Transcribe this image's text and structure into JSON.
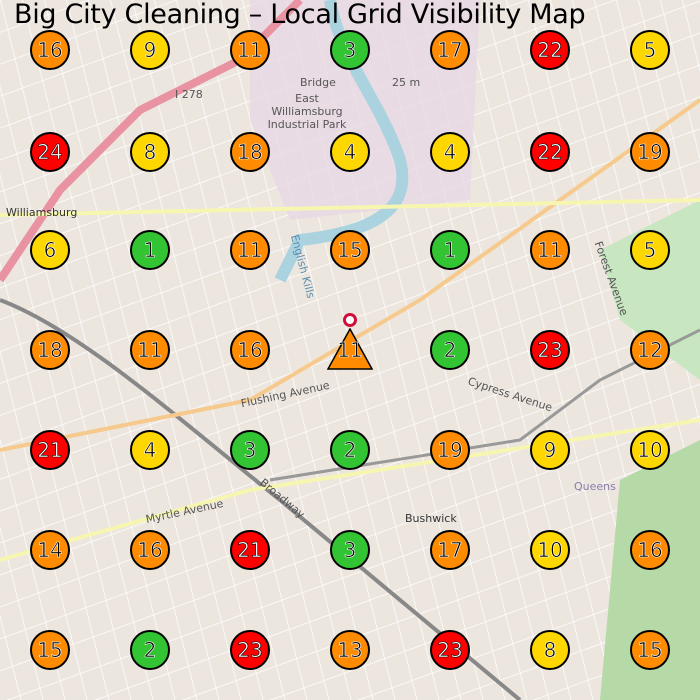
{
  "title": "Big City Cleaning – Local Grid Visibility Map",
  "colors": {
    "green": "#33c433",
    "yellow": "#ffd700",
    "orange": "#ff8c00",
    "red": "#ff0000"
  },
  "map_labels": {
    "bridge": "Bridge",
    "industrial_park": "East Williamsburg Industrial Park",
    "williamsburg": "Williamsburg",
    "english_kills": "English Kills",
    "flushing_avenue": "Flushing Avenue",
    "myrtle_avenue": "Myrtle Avenue",
    "broadway": "Broadway",
    "bushwick": "Bushwick",
    "queens": "Queens",
    "cypress_avenue": "Cypress Avenue",
    "forest_avenue": "Forest Avenue",
    "i278": "I 278",
    "hill": "25 m"
  },
  "center_marker": {
    "value": 11,
    "shape": "triangle",
    "color": "orange",
    "icon": "location-pin-icon"
  },
  "grid": [
    [
      {
        "v": 16,
        "c": "orange"
      },
      {
        "v": 9,
        "c": "yellow"
      },
      {
        "v": 11,
        "c": "orange"
      },
      {
        "v": 3,
        "c": "green"
      },
      {
        "v": 17,
        "c": "orange"
      },
      {
        "v": 22,
        "c": "red"
      },
      {
        "v": 5,
        "c": "yellow"
      }
    ],
    [
      {
        "v": 24,
        "c": "red"
      },
      {
        "v": 8,
        "c": "yellow"
      },
      {
        "v": 18,
        "c": "orange"
      },
      {
        "v": 4,
        "c": "yellow"
      },
      {
        "v": 4,
        "c": "yellow"
      },
      {
        "v": 22,
        "c": "red"
      },
      {
        "v": 19,
        "c": "orange"
      }
    ],
    [
      {
        "v": 6,
        "c": "yellow"
      },
      {
        "v": 1,
        "c": "green"
      },
      {
        "v": 11,
        "c": "orange"
      },
      {
        "v": 15,
        "c": "orange"
      },
      {
        "v": 1,
        "c": "green"
      },
      {
        "v": 11,
        "c": "orange"
      },
      {
        "v": 5,
        "c": "yellow"
      }
    ],
    [
      {
        "v": 18,
        "c": "orange"
      },
      {
        "v": 11,
        "c": "orange"
      },
      {
        "v": 16,
        "c": "orange"
      },
      {
        "v": 11,
        "c": "orange",
        "center": true
      },
      {
        "v": 2,
        "c": "green"
      },
      {
        "v": 23,
        "c": "red"
      },
      {
        "v": 12,
        "c": "orange"
      }
    ],
    [
      {
        "v": 21,
        "c": "red"
      },
      {
        "v": 4,
        "c": "yellow"
      },
      {
        "v": 3,
        "c": "green"
      },
      {
        "v": 2,
        "c": "green"
      },
      {
        "v": 19,
        "c": "orange"
      },
      {
        "v": 9,
        "c": "yellow"
      },
      {
        "v": 10,
        "c": "yellow"
      }
    ],
    [
      {
        "v": 14,
        "c": "orange"
      },
      {
        "v": 16,
        "c": "orange"
      },
      {
        "v": 21,
        "c": "red"
      },
      {
        "v": 3,
        "c": "green"
      },
      {
        "v": 17,
        "c": "orange"
      },
      {
        "v": 10,
        "c": "yellow"
      },
      {
        "v": 16,
        "c": "orange"
      }
    ],
    [
      {
        "v": 15,
        "c": "orange"
      },
      {
        "v": 2,
        "c": "green"
      },
      {
        "v": 23,
        "c": "red"
      },
      {
        "v": 13,
        "c": "orange"
      },
      {
        "v": 23,
        "c": "red"
      },
      {
        "v": 8,
        "c": "yellow"
      },
      {
        "v": 15,
        "c": "orange"
      }
    ]
  ]
}
